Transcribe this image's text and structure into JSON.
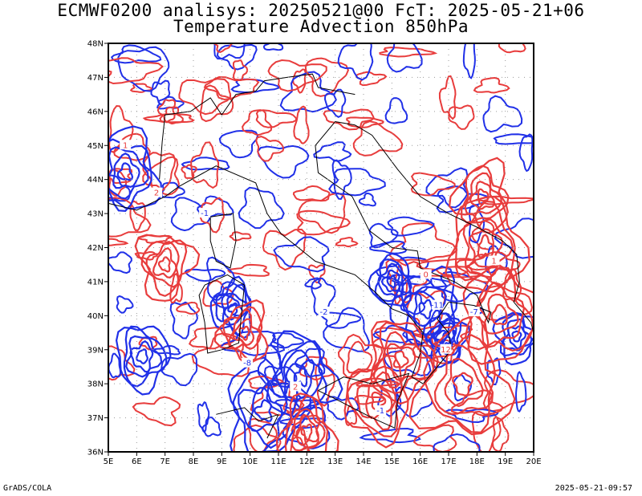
{
  "title_line1": "ECMWF0200 analisys: 20250521@00 FcT: 2025-05-21+06",
  "title_line2": "Temperature Advection 850hPa",
  "footer_left": "GrADS/COLA",
  "footer_right": "2025-05-21-09:57",
  "axes": {
    "lon_ticks": [
      "5E",
      "6E",
      "7E",
      "8E",
      "9E",
      "10E",
      "11E",
      "12E",
      "13E",
      "14E",
      "15E",
      "16E",
      "17E",
      "18E",
      "19E",
      "20E"
    ],
    "lat_ticks": [
      "48N",
      "47N",
      "46N",
      "45N",
      "44N",
      "43N",
      "42N",
      "41N",
      "40N",
      "39N",
      "38N",
      "37N",
      "36N"
    ],
    "lon_range": [
      5,
      20
    ],
    "lat_range": [
      36,
      48
    ]
  },
  "colors": {
    "positive": "#e83c3c",
    "negative": "#2030e8",
    "borders": "#000000",
    "grid": "#9a9a9a"
  },
  "contour_labels": [
    "1",
    "2",
    "-1",
    "-2",
    "0",
    "-11",
    "-7",
    "12",
    "-8",
    "2",
    "-1",
    "1"
  ]
}
